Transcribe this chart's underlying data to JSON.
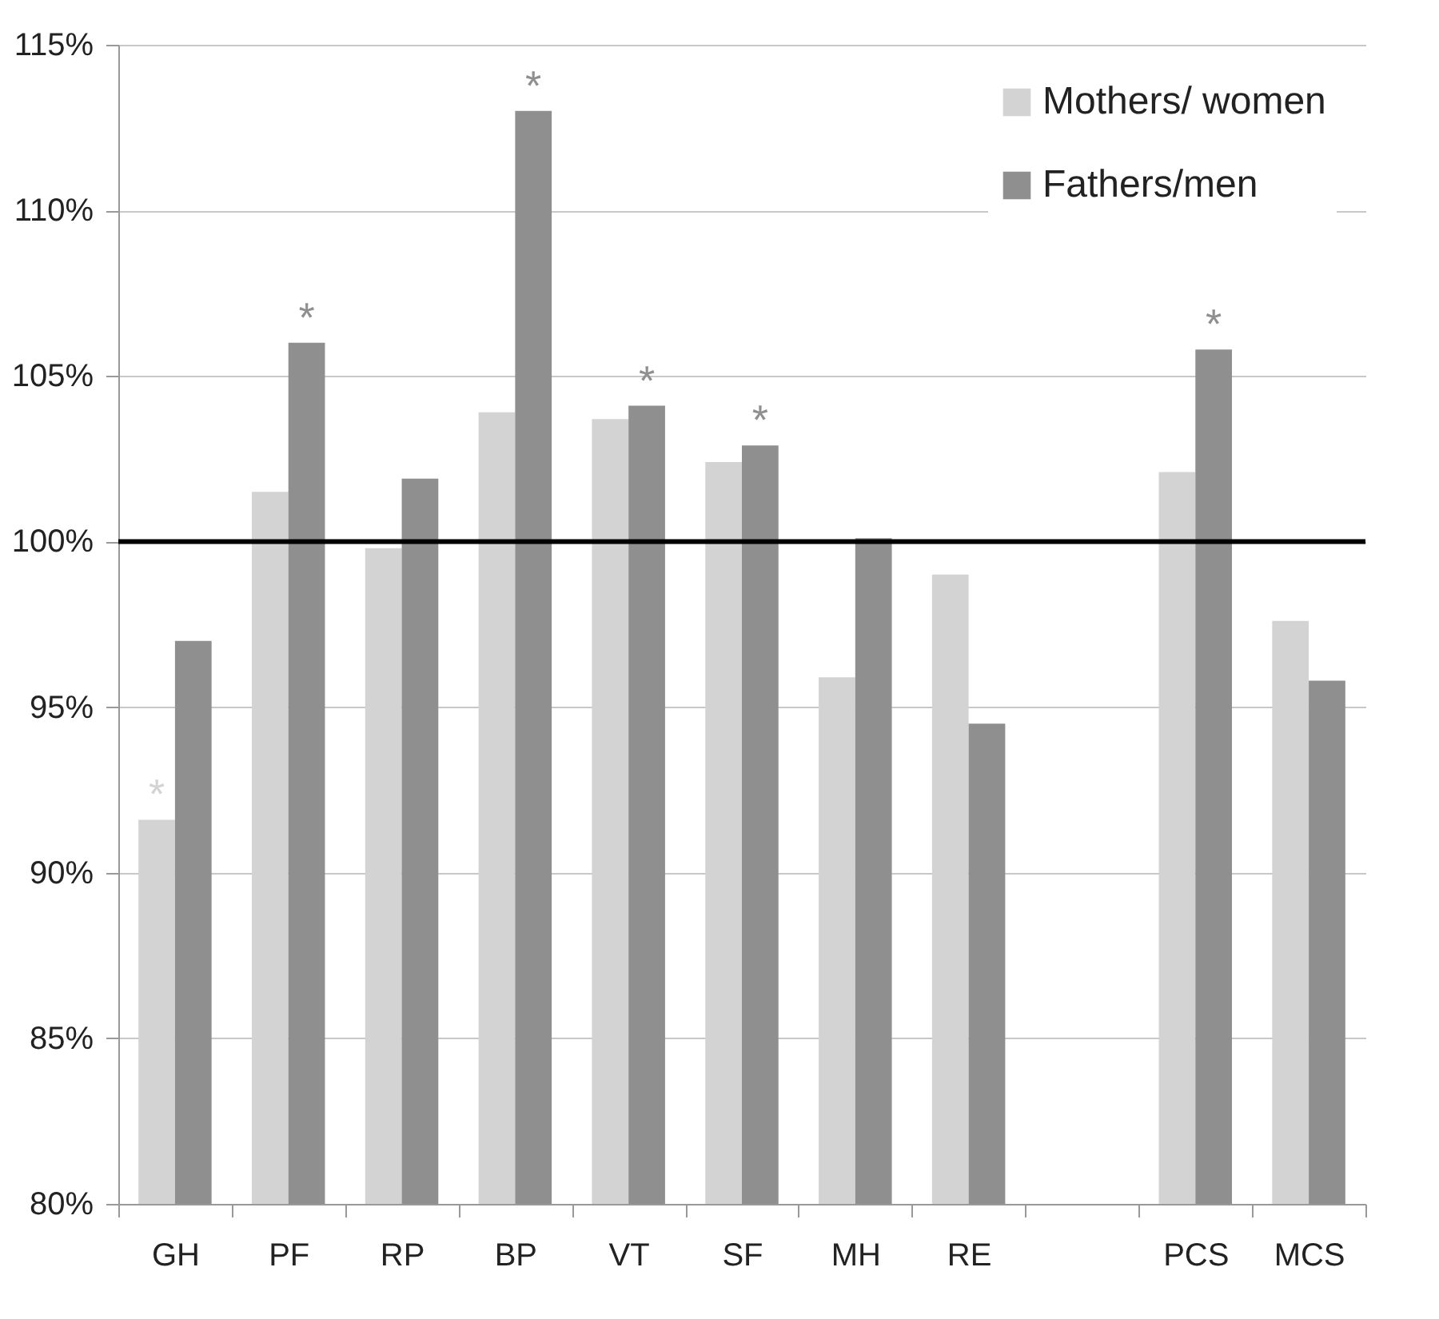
{
  "chart_data": {
    "type": "bar",
    "categories": [
      "GH",
      "PF",
      "RP",
      "BP",
      "VT",
      "SF",
      "MH",
      "RE",
      null,
      "PCS",
      "MCS"
    ],
    "series": [
      {
        "name": "Mothers/ women",
        "color": "#d3d3d3",
        "values": [
          91.6,
          101.5,
          99.8,
          103.9,
          103.7,
          102.4,
          95.9,
          99.0,
          null,
          102.1,
          97.6
        ]
      },
      {
        "name": "Fathers/men",
        "color": "#8f8f8f",
        "values": [
          97.0,
          106.0,
          101.9,
          113.0,
          104.1,
          102.9,
          100.1,
          94.5,
          null,
          105.8,
          95.8
        ]
      }
    ],
    "ylim": [
      80,
      115
    ],
    "yticks": [
      {
        "value": 80,
        "label": "80%"
      },
      {
        "value": 85,
        "label": "85%"
      },
      {
        "value": 90,
        "label": "90%"
      },
      {
        "value": 95,
        "label": "95%"
      },
      {
        "value": 100,
        "label": "100%"
      },
      {
        "value": 105,
        "label": "105%"
      },
      {
        "value": 110,
        "label": "110%"
      },
      {
        "value": 115,
        "label": "115%"
      }
    ],
    "ref_lines": [
      {
        "axis": "y",
        "value": 100,
        "color": "#000000"
      }
    ],
    "annotations": [
      {
        "text": "*",
        "x": "GH",
        "y": 91.6
      },
      {
        "text": "*",
        "x": "PF",
        "y": 106.0
      },
      {
        "text": "*",
        "x": "BP",
        "y": 113.0
      },
      {
        "text": "*",
        "x": "VT",
        "y": 104.1
      },
      {
        "text": "*",
        "x": "SF",
        "y": 102.9
      },
      {
        "text": "*",
        "x": "PCS",
        "y": 105.8
      }
    ],
    "grid": "y",
    "legend": "top right"
  }
}
